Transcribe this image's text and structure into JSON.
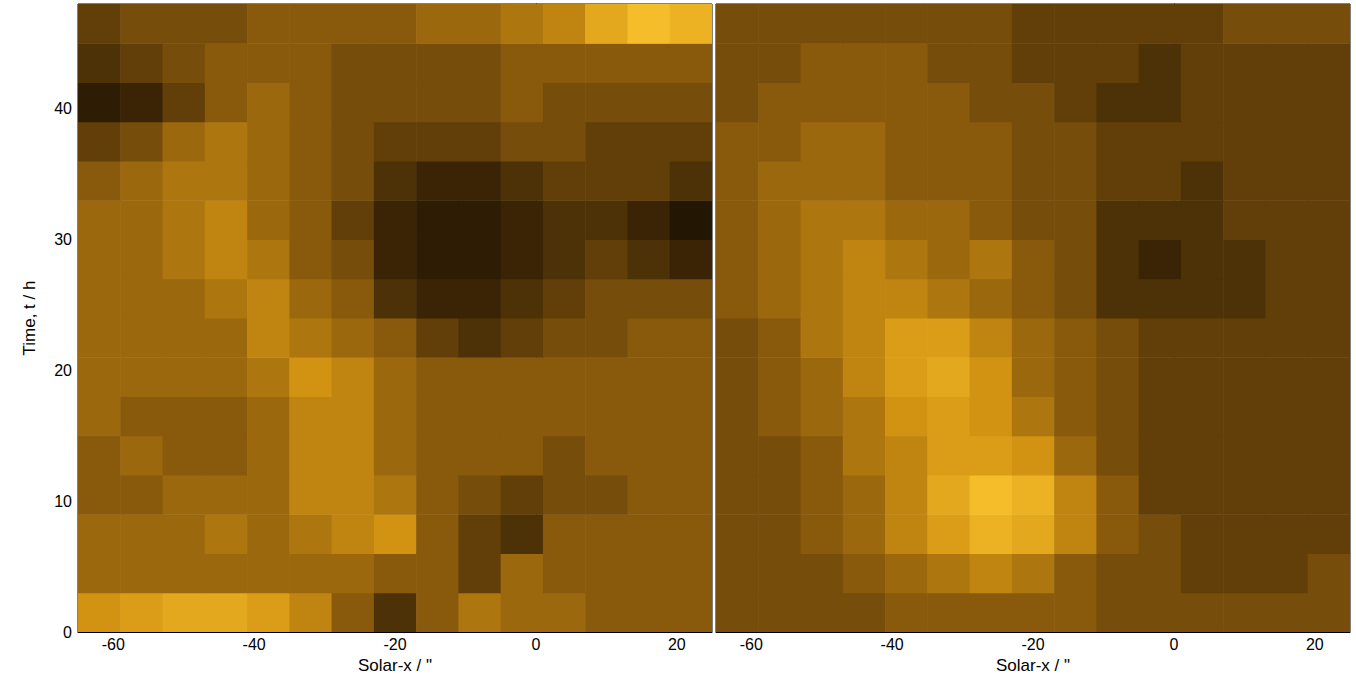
{
  "chart_data": [
    {
      "type": "heatmap",
      "x_label": "Solar-x / \"",
      "y_label": "Time, t / h",
      "xlim": [
        -65,
        25
      ],
      "xticks": [
        -60,
        -40,
        -20,
        0,
        20
      ],
      "ylim": [
        0,
        48
      ],
      "yticks": [
        0,
        10,
        20,
        30,
        40
      ],
      "zlim": [
        0,
        1
      ],
      "x": [
        -62,
        -56,
        -50,
        -44,
        -38,
        -32,
        -26,
        -20,
        -14,
        -8,
        -2,
        4,
        10,
        16,
        22
      ],
      "y": [
        1.5,
        4.5,
        7.5,
        10.5,
        13.5,
        16.5,
        19.5,
        22.5,
        25.5,
        28.5,
        31.5,
        34.5,
        37.5,
        40.5,
        43.5,
        46.5
      ],
      "values": [
        [
          0.65,
          0.7,
          0.75,
          0.75,
          0.7,
          0.6,
          0.45,
          0.3,
          0.45,
          0.55,
          0.5,
          0.5,
          0.45,
          0.45,
          0.45
        ],
        [
          0.5,
          0.5,
          0.5,
          0.5,
          0.5,
          0.5,
          0.5,
          0.45,
          0.45,
          0.35,
          0.5,
          0.45,
          0.45,
          0.45,
          0.45
        ],
        [
          0.5,
          0.5,
          0.5,
          0.55,
          0.5,
          0.55,
          0.6,
          0.65,
          0.45,
          0.35,
          0.3,
          0.45,
          0.45,
          0.45,
          0.45
        ],
        [
          0.45,
          0.45,
          0.5,
          0.5,
          0.5,
          0.6,
          0.6,
          0.55,
          0.45,
          0.4,
          0.35,
          0.4,
          0.4,
          0.45,
          0.45
        ],
        [
          0.45,
          0.5,
          0.45,
          0.45,
          0.5,
          0.6,
          0.6,
          0.5,
          0.45,
          0.45,
          0.45,
          0.4,
          0.45,
          0.45,
          0.45
        ],
        [
          0.5,
          0.45,
          0.45,
          0.45,
          0.5,
          0.6,
          0.6,
          0.5,
          0.45,
          0.45,
          0.45,
          0.45,
          0.45,
          0.45,
          0.45
        ],
        [
          0.5,
          0.5,
          0.5,
          0.5,
          0.55,
          0.65,
          0.6,
          0.5,
          0.45,
          0.45,
          0.45,
          0.45,
          0.45,
          0.45,
          0.45
        ],
        [
          0.5,
          0.5,
          0.5,
          0.5,
          0.6,
          0.55,
          0.5,
          0.45,
          0.35,
          0.3,
          0.35,
          0.4,
          0.4,
          0.45,
          0.45
        ],
        [
          0.5,
          0.5,
          0.5,
          0.55,
          0.6,
          0.5,
          0.45,
          0.3,
          0.25,
          0.25,
          0.3,
          0.35,
          0.4,
          0.4,
          0.4
        ],
        [
          0.5,
          0.5,
          0.55,
          0.6,
          0.55,
          0.45,
          0.4,
          0.25,
          0.2,
          0.2,
          0.25,
          0.3,
          0.35,
          0.3,
          0.25
        ],
        [
          0.5,
          0.5,
          0.55,
          0.6,
          0.5,
          0.45,
          0.35,
          0.25,
          0.2,
          0.2,
          0.25,
          0.3,
          0.3,
          0.25,
          0.15
        ],
        [
          0.45,
          0.5,
          0.55,
          0.55,
          0.5,
          0.45,
          0.4,
          0.3,
          0.25,
          0.25,
          0.3,
          0.35,
          0.35,
          0.35,
          0.3
        ],
        [
          0.35,
          0.4,
          0.5,
          0.55,
          0.5,
          0.45,
          0.4,
          0.35,
          0.35,
          0.35,
          0.4,
          0.4,
          0.35,
          0.35,
          0.35
        ],
        [
          0.2,
          0.25,
          0.35,
          0.45,
          0.5,
          0.45,
          0.4,
          0.4,
          0.4,
          0.4,
          0.45,
          0.4,
          0.4,
          0.4,
          0.4
        ],
        [
          0.3,
          0.35,
          0.4,
          0.45,
          0.45,
          0.45,
          0.4,
          0.4,
          0.4,
          0.4,
          0.45,
          0.45,
          0.45,
          0.45,
          0.45
        ],
        [
          0.35,
          0.4,
          0.4,
          0.4,
          0.45,
          0.45,
          0.45,
          0.45,
          0.5,
          0.5,
          0.55,
          0.6,
          0.75,
          0.85,
          0.8
        ]
      ]
    },
    {
      "type": "heatmap",
      "x_label": "Solar-x / \"",
      "tick_labels": "x",
      "xlim": [
        -65,
        25
      ],
      "xticks": [
        -60,
        -40,
        -20,
        0,
        20
      ],
      "ylim": [
        0,
        48
      ],
      "yticks": [
        0,
        10,
        20,
        30,
        40
      ],
      "zlim": [
        0,
        1
      ],
      "x": [
        -62,
        -56,
        -50,
        -44,
        -38,
        -32,
        -26,
        -20,
        -14,
        -8,
        -2,
        4,
        10,
        16,
        22
      ],
      "y": [
        1.5,
        4.5,
        7.5,
        10.5,
        13.5,
        16.5,
        19.5,
        22.5,
        25.5,
        28.5,
        31.5,
        34.5,
        37.5,
        40.5,
        43.5,
        46.5
      ],
      "values": [
        [
          0.4,
          0.4,
          0.4,
          0.4,
          0.45,
          0.45,
          0.45,
          0.45,
          0.45,
          0.4,
          0.4,
          0.4,
          0.4,
          0.4,
          0.4
        ],
        [
          0.4,
          0.4,
          0.4,
          0.45,
          0.5,
          0.55,
          0.6,
          0.55,
          0.45,
          0.4,
          0.4,
          0.35,
          0.35,
          0.35,
          0.4
        ],
        [
          0.4,
          0.4,
          0.45,
          0.5,
          0.6,
          0.7,
          0.8,
          0.75,
          0.6,
          0.45,
          0.4,
          0.35,
          0.35,
          0.35,
          0.35
        ],
        [
          0.4,
          0.4,
          0.45,
          0.5,
          0.6,
          0.75,
          0.85,
          0.8,
          0.6,
          0.45,
          0.35,
          0.35,
          0.35,
          0.35,
          0.35
        ],
        [
          0.4,
          0.4,
          0.45,
          0.55,
          0.6,
          0.7,
          0.7,
          0.65,
          0.5,
          0.4,
          0.35,
          0.35,
          0.35,
          0.35,
          0.35
        ],
        [
          0.4,
          0.45,
          0.5,
          0.55,
          0.65,
          0.7,
          0.65,
          0.55,
          0.45,
          0.4,
          0.35,
          0.35,
          0.35,
          0.35,
          0.35
        ],
        [
          0.4,
          0.45,
          0.5,
          0.6,
          0.7,
          0.75,
          0.65,
          0.5,
          0.45,
          0.4,
          0.35,
          0.35,
          0.35,
          0.35,
          0.35
        ],
        [
          0.4,
          0.45,
          0.55,
          0.6,
          0.7,
          0.7,
          0.6,
          0.5,
          0.45,
          0.4,
          0.35,
          0.35,
          0.35,
          0.35,
          0.35
        ],
        [
          0.45,
          0.5,
          0.55,
          0.6,
          0.6,
          0.55,
          0.5,
          0.45,
          0.4,
          0.3,
          0.3,
          0.3,
          0.3,
          0.35,
          0.35
        ],
        [
          0.45,
          0.5,
          0.55,
          0.6,
          0.55,
          0.5,
          0.55,
          0.45,
          0.4,
          0.3,
          0.25,
          0.3,
          0.3,
          0.35,
          0.35
        ],
        [
          0.45,
          0.5,
          0.55,
          0.55,
          0.5,
          0.5,
          0.45,
          0.4,
          0.4,
          0.3,
          0.3,
          0.3,
          0.35,
          0.35,
          0.35
        ],
        [
          0.45,
          0.5,
          0.5,
          0.5,
          0.45,
          0.45,
          0.45,
          0.4,
          0.4,
          0.35,
          0.35,
          0.3,
          0.35,
          0.35,
          0.35
        ],
        [
          0.45,
          0.45,
          0.5,
          0.5,
          0.45,
          0.45,
          0.45,
          0.4,
          0.4,
          0.35,
          0.35,
          0.35,
          0.35,
          0.35,
          0.35
        ],
        [
          0.4,
          0.45,
          0.45,
          0.45,
          0.45,
          0.45,
          0.4,
          0.4,
          0.35,
          0.3,
          0.3,
          0.35,
          0.35,
          0.35,
          0.35
        ],
        [
          0.4,
          0.4,
          0.45,
          0.45,
          0.45,
          0.4,
          0.4,
          0.35,
          0.35,
          0.35,
          0.3,
          0.35,
          0.35,
          0.35,
          0.35
        ],
        [
          0.4,
          0.4,
          0.4,
          0.4,
          0.4,
          0.4,
          0.4,
          0.35,
          0.35,
          0.35,
          0.35,
          0.35,
          0.4,
          0.4,
          0.4
        ]
      ]
    }
  ]
}
